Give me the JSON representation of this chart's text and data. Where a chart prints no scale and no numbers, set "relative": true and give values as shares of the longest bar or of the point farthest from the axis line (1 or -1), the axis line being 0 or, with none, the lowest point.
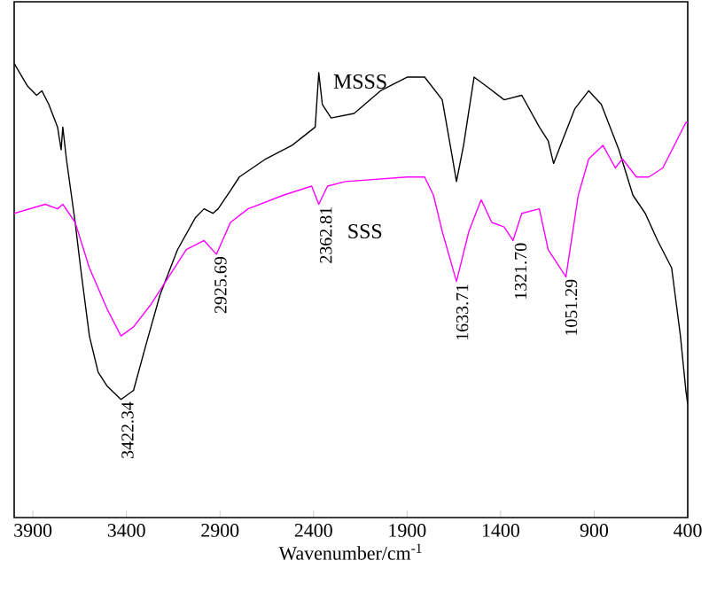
{
  "chart_data": {
    "type": "line",
    "relative": true,
    "xlabel": "Wavenumber/cm$^{-1}$",
    "xlim": [
      4000,
      400
    ],
    "xticks": [
      3900,
      3400,
      2900,
      2400,
      1900,
      1400,
      900,
      400
    ],
    "tick_labels": "x",
    "series": [
      {
        "name": "MSSS",
        "color": "#000000",
        "x": [
          4000,
          3928,
          3880,
          3852,
          3815,
          3768,
          3749,
          3740,
          3721,
          3674,
          3645,
          3598,
          3551,
          3504,
          3429,
          3362,
          3296,
          3221,
          3127,
          3032,
          2985,
          2938,
          2910,
          2844,
          2797,
          2655,
          2514,
          2391,
          2372,
          2353,
          2306,
          2183,
          2042,
          1900,
          1806,
          1712,
          1665,
          1636,
          1598,
          1542,
          1476,
          1381,
          1287,
          1193,
          1146,
          1117,
          1070,
          1004,
          929,
          862,
          768,
          693,
          627,
          561,
          486,
          439,
          410,
          400
        ],
        "values": [
          1.0,
          0.95,
          0.93,
          0.94,
          0.91,
          0.86,
          0.81,
          0.86,
          0.79,
          0.65,
          0.55,
          0.4,
          0.32,
          0.29,
          0.26,
          0.28,
          0.38,
          0.49,
          0.59,
          0.66,
          0.68,
          0.67,
          0.68,
          0.72,
          0.75,
          0.79,
          0.82,
          0.86,
          0.98,
          0.91,
          0.88,
          0.89,
          0.94,
          0.97,
          0.97,
          0.92,
          0.81,
          0.74,
          0.82,
          0.97,
          0.95,
          0.92,
          0.93,
          0.86,
          0.83,
          0.78,
          0.83,
          0.9,
          0.94,
          0.91,
          0.81,
          0.71,
          0.67,
          0.61,
          0.55,
          0.4,
          0.28,
          0.25
        ]
      },
      {
        "name": "SSS",
        "color": "#ff00ff",
        "x": [
          4000,
          3834,
          3768,
          3740,
          3674,
          3598,
          3504,
          3429,
          3362,
          3268,
          3174,
          3080,
          2985,
          2919,
          2844,
          2750,
          2561,
          2410,
          2372,
          2325,
          2231,
          1900,
          1806,
          1759,
          1712,
          1636,
          1570,
          1504,
          1447,
          1381,
          1334,
          1287,
          1193,
          1146,
          1051,
          985,
          929,
          853,
          787,
          749,
          674,
          608,
          533,
          410,
          400
        ],
        "values": [
          0.67,
          0.69,
          0.68,
          0.69,
          0.65,
          0.55,
          0.46,
          0.4,
          0.42,
          0.47,
          0.53,
          0.59,
          0.61,
          0.58,
          0.65,
          0.68,
          0.71,
          0.73,
          0.69,
          0.73,
          0.74,
          0.75,
          0.75,
          0.71,
          0.63,
          0.52,
          0.63,
          0.7,
          0.65,
          0.64,
          0.61,
          0.67,
          0.68,
          0.59,
          0.53,
          0.71,
          0.79,
          0.82,
          0.77,
          0.79,
          0.75,
          0.75,
          0.77,
          0.87,
          0.87
        ]
      }
    ],
    "annotations": [
      {
        "text": "3422.34",
        "x": 3422,
        "y": 0.26
      },
      {
        "text": "2925.69",
        "x": 2925,
        "y": 0.58
      },
      {
        "text": "2362.81",
        "x": 2362,
        "y": 0.69
      },
      {
        "text": "1633.71",
        "x": 1633,
        "y": 0.52
      },
      {
        "text": "1321.70",
        "x": 1321,
        "y": 0.61
      },
      {
        "text": "1051.29",
        "x": 1051,
        "y": 0.53
      }
    ]
  }
}
